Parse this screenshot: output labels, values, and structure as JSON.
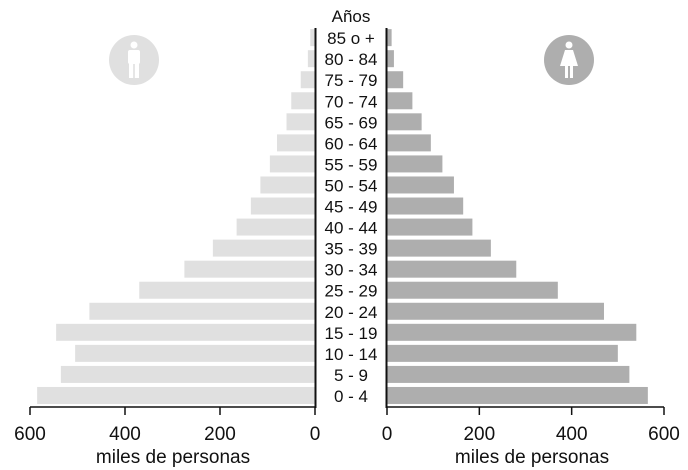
{
  "chart_data": {
    "type": "bar",
    "orientation": "horizontal",
    "layout": "population-pyramid",
    "category_title": "Años",
    "categories": [
      "0 - 4",
      "5 - 9",
      "10 - 14",
      "15 - 19",
      "20 - 24",
      "25 - 29",
      "30 - 34",
      "35 - 39",
      "40 - 44",
      "45 - 49",
      "50 - 54",
      "55 - 59",
      "60 - 64",
      "65 - 69",
      "70 - 74",
      "75 - 79",
      "80 - 84",
      "85 o +"
    ],
    "series": [
      {
        "side": "left",
        "color": "#e0e0e0",
        "icon": "male-icon",
        "values": [
          585,
          535,
          505,
          545,
          475,
          370,
          275,
          215,
          165,
          135,
          115,
          95,
          80,
          60,
          50,
          30,
          15,
          10
        ]
      },
      {
        "side": "right",
        "color": "#aeaeae",
        "icon": "female-icon",
        "values": [
          565,
          525,
          500,
          540,
          470,
          370,
          280,
          225,
          185,
          165,
          145,
          120,
          95,
          75,
          55,
          35,
          15,
          10
        ]
      }
    ],
    "xlabel_left": "miles de personas",
    "xlabel_right": "miles de personas",
    "xlim": [
      0,
      600
    ],
    "xticks": [
      "0",
      "200",
      "400",
      "600"
    ],
    "grid": false
  }
}
